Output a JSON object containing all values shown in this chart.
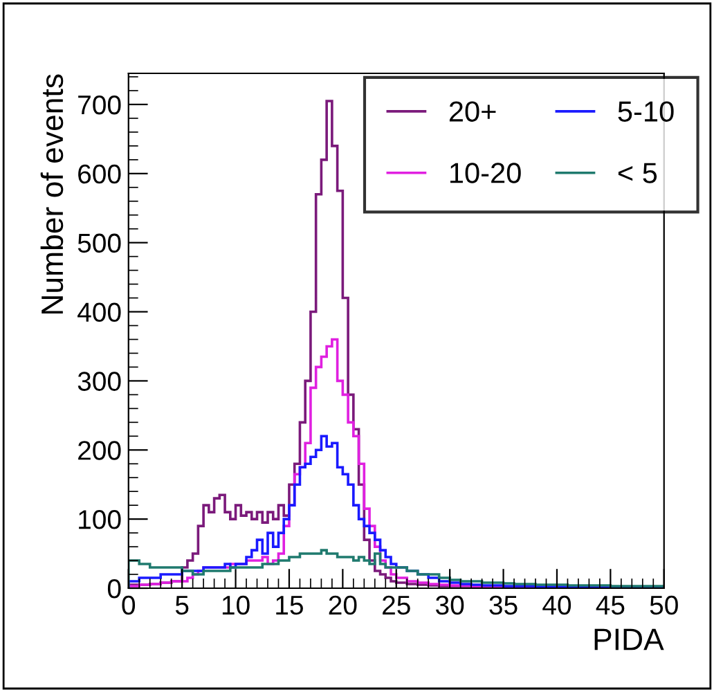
{
  "chart_data": {
    "type": "histogram",
    "xlabel": "PIDA",
    "ylabel": "Number of events",
    "bins": [
      0,
      1,
      2,
      3,
      4,
      5,
      5.5,
      6,
      6.5,
      7,
      7.5,
      8,
      8.5,
      9,
      9.5,
      10,
      10.5,
      11,
      11.5,
      12,
      12.5,
      13,
      13.5,
      14,
      14.5,
      15,
      15.5,
      16,
      16.5,
      17,
      17.5,
      18,
      18.5,
      19,
      19.5,
      20,
      20.5,
      21,
      21.5,
      22,
      22.5,
      23,
      23.5,
      24,
      24.5,
      25,
      26,
      27,
      28,
      29,
      30,
      31,
      32,
      33,
      34,
      35,
      36,
      37,
      38,
      39,
      40,
      41,
      42,
      43,
      44,
      45,
      46,
      47,
      48,
      49,
      50
    ],
    "series": [
      {
        "name": "20+",
        "color": "#7b1a7b",
        "values": [
          5,
          5,
          6,
          8,
          10,
          30,
          40,
          50,
          90,
          120,
          110,
          130,
          135,
          110,
          100,
          120,
          105,
          110,
          100,
          110,
          95,
          110,
          100,
          120,
          105,
          150,
          180,
          240,
          300,
          400,
          570,
          620,
          705,
          640,
          575,
          420,
          280,
          230,
          150,
          70,
          40,
          25,
          20,
          15,
          10,
          8,
          6,
          5,
          4,
          3,
          3,
          3,
          2,
          2,
          2,
          2,
          2,
          2,
          1,
          1,
          1,
          1,
          1,
          1,
          1,
          1,
          1,
          1,
          1,
          1
        ]
      },
      {
        "name": "10-20",
        "color": "#e020e0",
        "values": [
          3,
          5,
          6,
          8,
          10,
          10,
          15,
          20,
          25,
          30,
          30,
          30,
          30,
          30,
          35,
          35,
          35,
          40,
          40,
          40,
          45,
          35,
          40,
          50,
          90,
          120,
          165,
          175,
          210,
          290,
          320,
          335,
          350,
          360,
          300,
          280,
          240,
          220,
          180,
          115,
          90,
          60,
          40,
          30,
          20,
          15,
          10,
          8,
          6,
          5,
          4,
          4,
          3,
          3,
          3,
          2,
          2,
          2,
          2,
          2,
          1,
          1,
          1,
          1,
          1,
          1,
          1,
          1,
          1,
          1
        ]
      },
      {
        "name": "5-10",
        "color": "#1a1aff",
        "values": [
          10,
          15,
          15,
          20,
          20,
          25,
          25,
          25,
          25,
          30,
          30,
          30,
          30,
          35,
          30,
          35,
          35,
          45,
          55,
          70,
          50,
          80,
          60,
          80,
          100,
          120,
          150,
          175,
          180,
          190,
          200,
          220,
          205,
          210,
          175,
          165,
          150,
          120,
          100,
          90,
          80,
          70,
          55,
          45,
          35,
          30,
          25,
          20,
          15,
          10,
          8,
          6,
          5,
          4,
          4,
          3,
          3,
          3,
          2,
          2,
          2,
          2,
          2,
          1,
          1,
          1,
          1,
          1,
          1,
          1
        ]
      },
      {
        "name": "< 5",
        "color": "#1f7a6e",
        "values": [
          40,
          35,
          30,
          30,
          30,
          25,
          25,
          20,
          20,
          25,
          25,
          25,
          25,
          25,
          30,
          30,
          30,
          30,
          30,
          30,
          35,
          35,
          35,
          40,
          40,
          45,
          45,
          50,
          50,
          50,
          50,
          55,
          50,
          50,
          45,
          45,
          45,
          40,
          45,
          40,
          35,
          50,
          35,
          30,
          30,
          30,
          25,
          20,
          20,
          15,
          12,
          10,
          10,
          8,
          8,
          7,
          6,
          6,
          5,
          5,
          5,
          4,
          4,
          4,
          4,
          3,
          3,
          3,
          3,
          3
        ]
      }
    ],
    "xlim": [
      0,
      50
    ],
    "xticks": [
      0,
      5,
      10,
      15,
      20,
      25,
      30,
      35,
      40,
      45,
      50
    ],
    "ylim": [
      0,
      745
    ],
    "yticks": [
      0,
      100,
      200,
      300,
      400,
      500,
      600,
      700
    ],
    "grid": false,
    "legend": "top right"
  }
}
